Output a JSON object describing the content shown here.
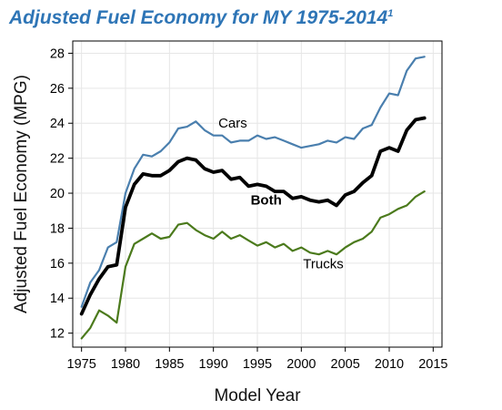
{
  "chart_data": {
    "type": "line",
    "title_main": "Adjusted Fuel Economy for MY 1975-2014",
    "title_sup": "1",
    "xlabel": "Model Year",
    "ylabel": "Adjusted Fuel Economy (MPG)",
    "xlim": [
      1974,
      2016
    ],
    "ylim": [
      11.2,
      28.7
    ],
    "xticks": [
      1975,
      1980,
      1985,
      1990,
      1995,
      2000,
      2005,
      2010,
      2015
    ],
    "yticks": [
      12,
      14,
      16,
      18,
      20,
      22,
      24,
      26,
      28
    ],
    "grid": true,
    "x": [
      1975,
      1976,
      1977,
      1978,
      1979,
      1980,
      1981,
      1982,
      1983,
      1984,
      1985,
      1986,
      1987,
      1988,
      1989,
      1990,
      1991,
      1992,
      1993,
      1994,
      1995,
      1996,
      1997,
      1998,
      1999,
      2000,
      2001,
      2002,
      2003,
      2004,
      2005,
      2006,
      2007,
      2008,
      2009,
      2010,
      2011,
      2012,
      2013,
      2014
    ],
    "series": [
      {
        "name": "Cars",
        "color": "#4a7fae",
        "values": [
          13.5,
          14.9,
          15.6,
          16.9,
          17.2,
          20.0,
          21.4,
          22.2,
          22.1,
          22.4,
          22.9,
          23.7,
          23.8,
          24.1,
          23.6,
          23.3,
          23.3,
          22.9,
          23.0,
          23.0,
          23.3,
          23.1,
          23.2,
          23.0,
          22.8,
          22.6,
          22.7,
          22.8,
          23.0,
          22.9,
          23.2,
          23.1,
          23.7,
          23.9,
          24.9,
          25.7,
          25.6,
          27.0,
          27.7,
          27.8
        ]
      },
      {
        "name": "Both",
        "color": "#000000",
        "values": [
          13.1,
          14.2,
          15.1,
          15.8,
          15.9,
          19.2,
          20.5,
          21.1,
          21.0,
          21.0,
          21.3,
          21.8,
          22.0,
          21.9,
          21.4,
          21.2,
          21.3,
          20.8,
          20.9,
          20.4,
          20.5,
          20.4,
          20.1,
          20.1,
          19.7,
          19.8,
          19.6,
          19.5,
          19.6,
          19.3,
          19.9,
          20.1,
          20.6,
          21.0,
          22.4,
          22.6,
          22.4,
          23.6,
          24.2,
          24.3
        ]
      },
      {
        "name": "Trucks",
        "color": "#4b7a1c",
        "values": [
          11.7,
          12.3,
          13.3,
          13.0,
          12.6,
          15.8,
          17.1,
          17.4,
          17.7,
          17.4,
          17.5,
          18.2,
          18.3,
          17.9,
          17.6,
          17.4,
          17.8,
          17.4,
          17.6,
          17.3,
          17.0,
          17.2,
          16.9,
          17.1,
          16.7,
          16.9,
          16.6,
          16.5,
          16.7,
          16.5,
          16.9,
          17.2,
          17.4,
          17.8,
          18.6,
          18.8,
          19.1,
          19.3,
          19.8,
          20.1
        ]
      }
    ]
  }
}
